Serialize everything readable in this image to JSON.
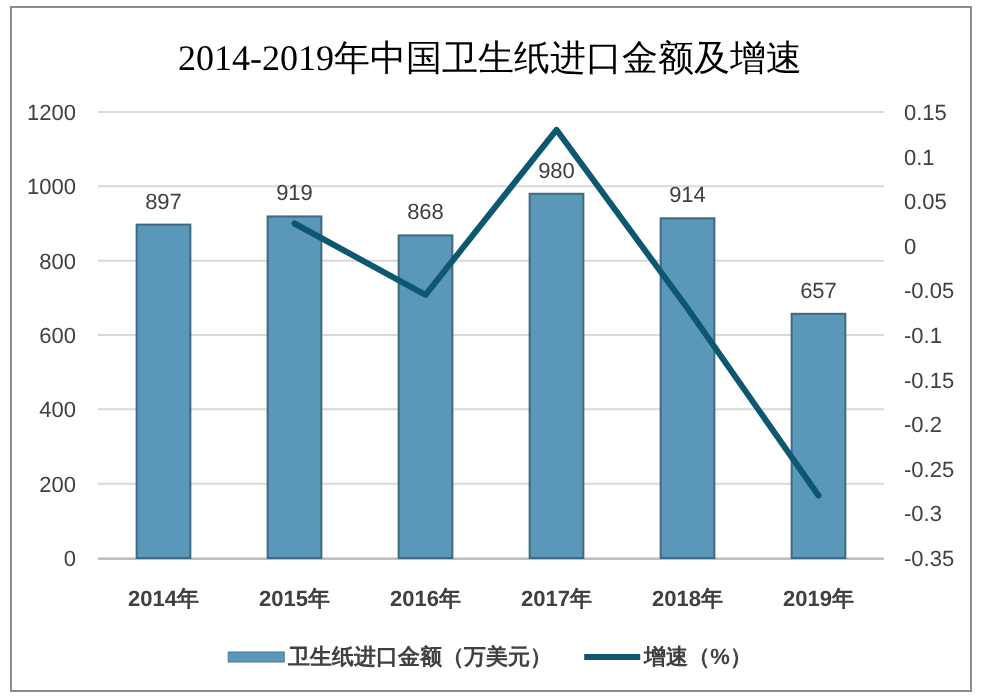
{
  "chart_data": {
    "type": "bar",
    "title": "2014-2019年中国卫生纸进口金额及增速",
    "categories": [
      "2014年",
      "2015年",
      "2016年",
      "2017年",
      "2018年",
      "2019年"
    ],
    "series": [
      {
        "name": "卫生纸进口金额（万美元）",
        "color": "#5a97b8",
        "values": [
          897,
          919,
          868,
          980,
          914,
          657
        ],
        "value_labels": [
          "897",
          "919",
          "868",
          "980",
          "914",
          "657"
        ]
      },
      {
        "name": "增速（%）",
        "type": "line",
        "axis": "y2",
        "color": "#0d5770",
        "values": [
          null,
          0.025,
          -0.055,
          0.13,
          -0.07,
          -0.28
        ]
      }
    ],
    "ylim": [
      0,
      1200
    ],
    "yticks": [
      0,
      200,
      400,
      600,
      800,
      1000,
      1200
    ],
    "y2lim": [
      -0.35,
      0.15
    ],
    "y2ticks": [
      -0.35,
      -0.3,
      -0.25,
      -0.2,
      -0.15,
      -0.1,
      -0.05,
      0,
      0.05,
      0.1,
      0.15
    ],
    "grid": "y",
    "legend": "bottom"
  }
}
